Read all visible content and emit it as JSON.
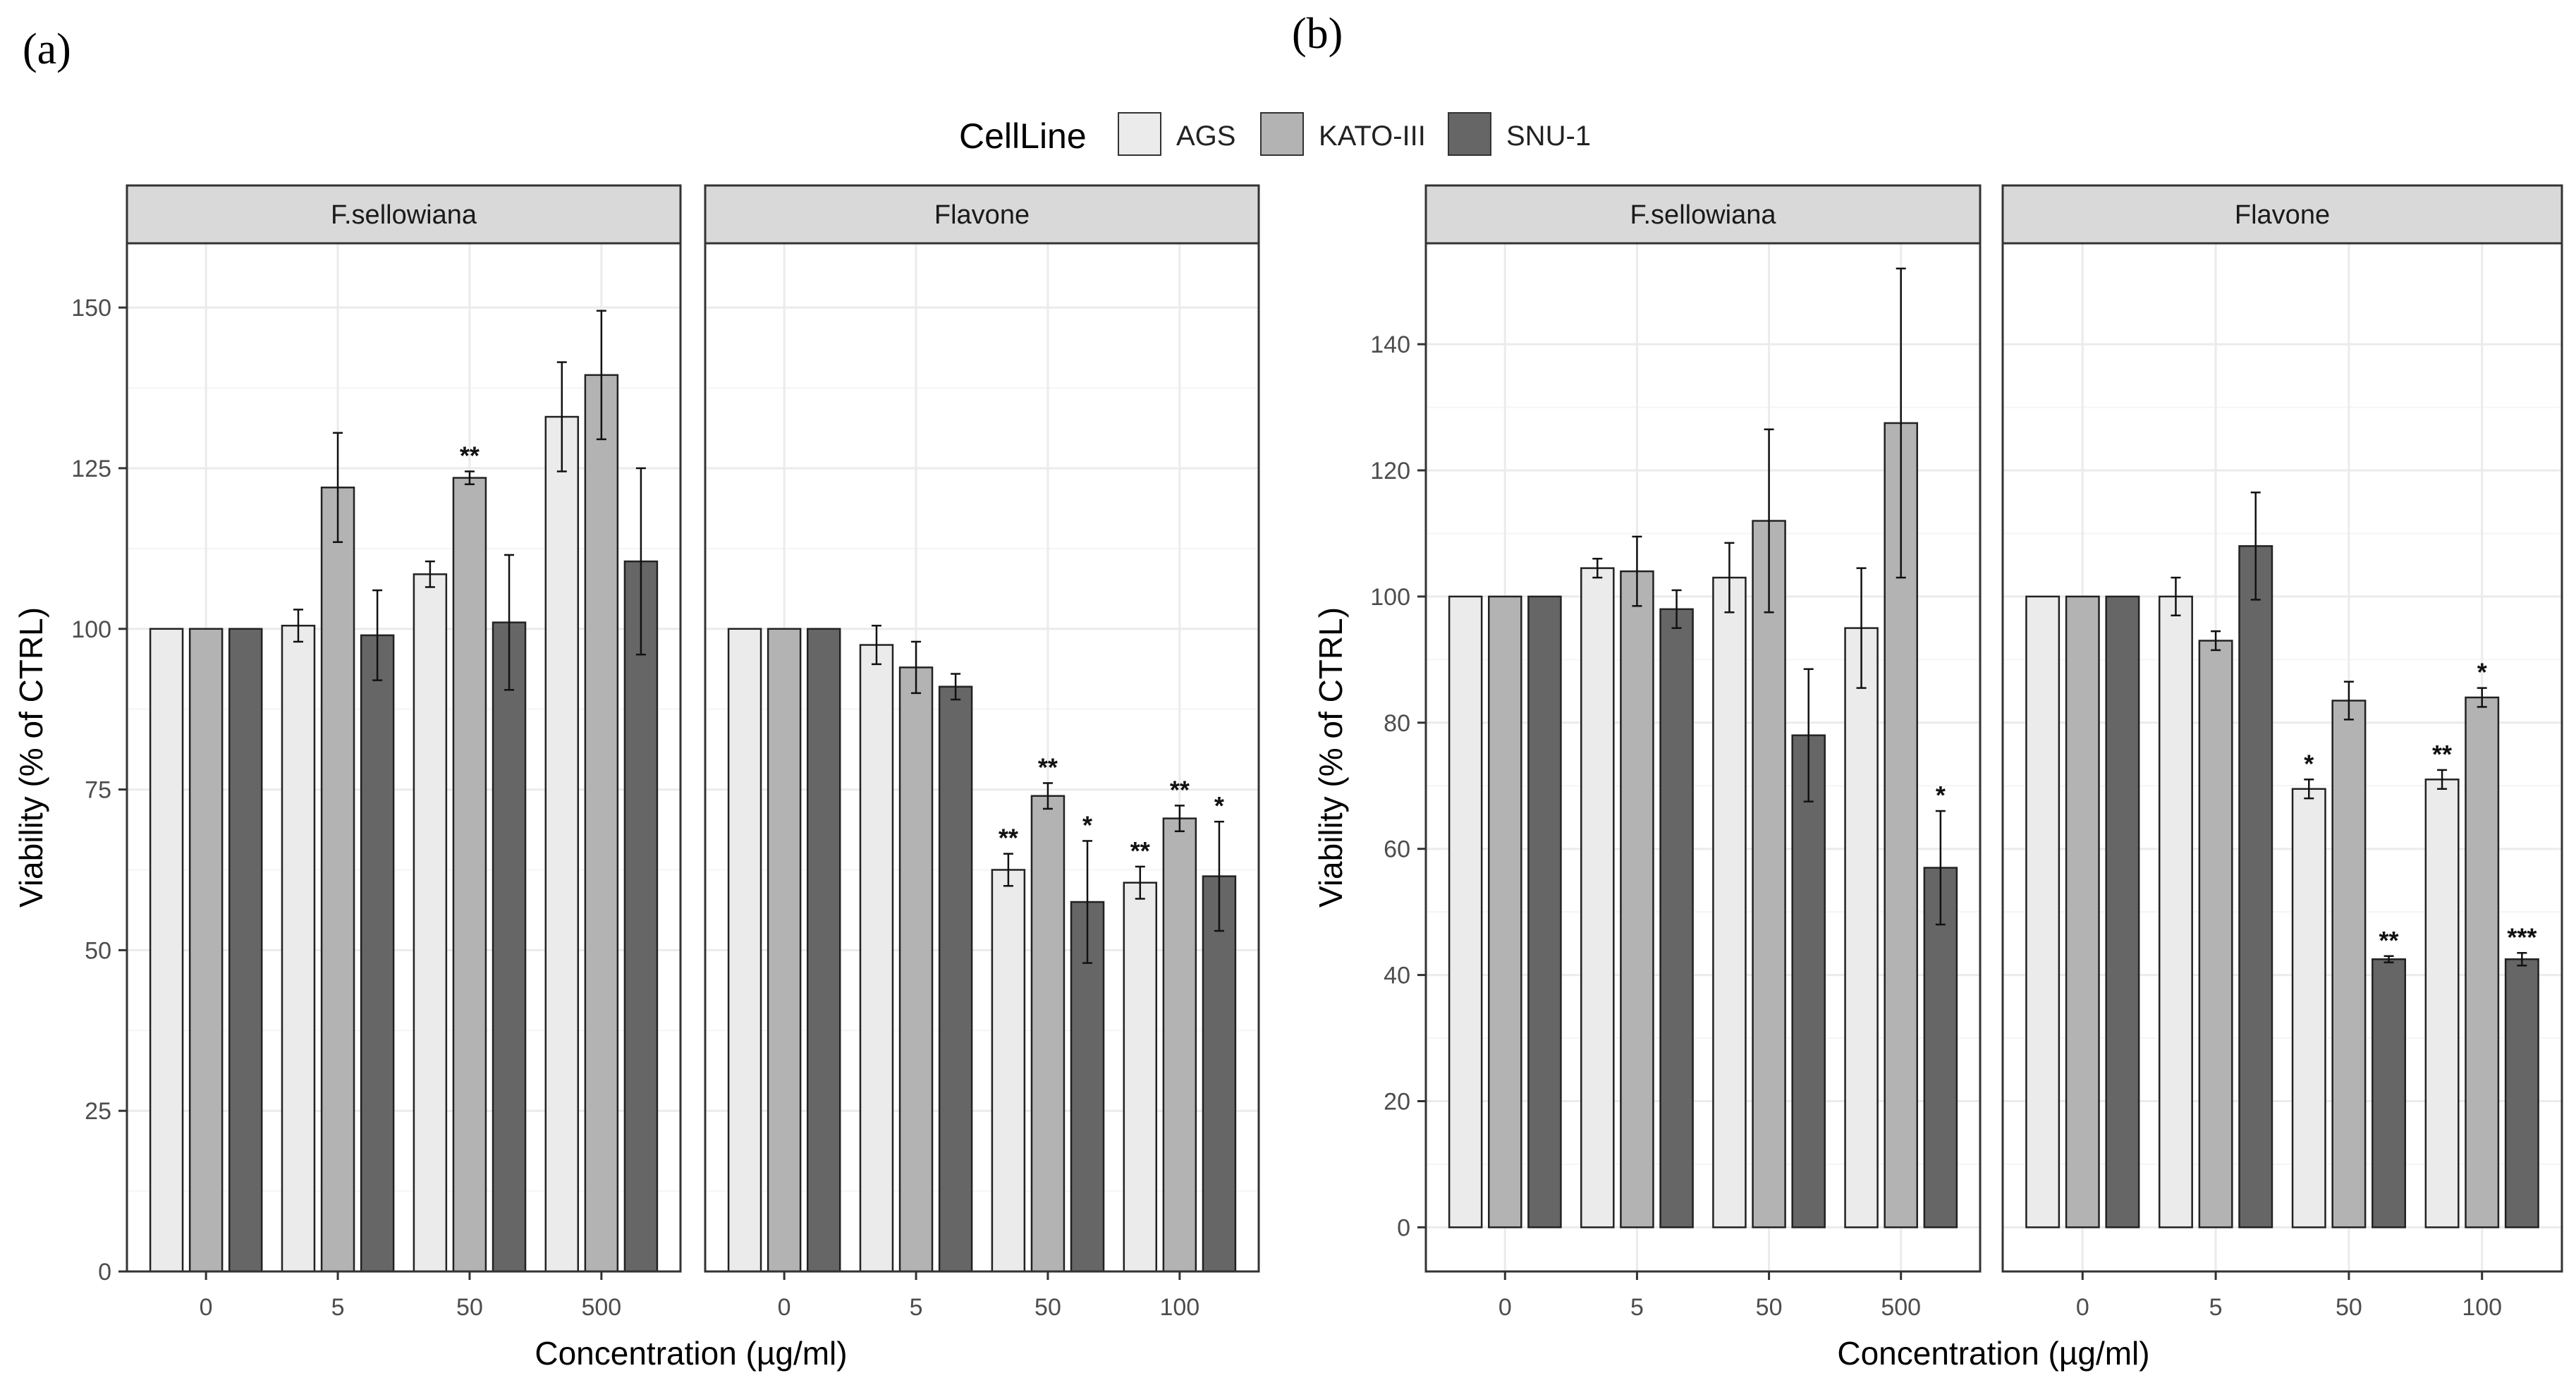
{
  "figure": {
    "panel_labels": [
      "(a)",
      "(b)"
    ],
    "legend": {
      "title": "CellLine",
      "entries": [
        {
          "name": "AGS",
          "color": "#ebebeb"
        },
        {
          "name": "KATO-III",
          "color": "#b3b3b3"
        },
        {
          "name": "SNU-1",
          "color": "#666666"
        }
      ]
    }
  },
  "chart_data": [
    {
      "type": "bar",
      "panel": "(a)",
      "xlabel": "Concentration (µg/ml)",
      "ylabel": "Viability (% of CTRL)",
      "ylim": [
        0,
        160
      ],
      "yticks": [
        0,
        25,
        50,
        75,
        100,
        125,
        150
      ],
      "series_names": [
        "AGS",
        "KATO-III",
        "SNU-1"
      ],
      "facets": [
        {
          "title": "F.sellowiana",
          "categories": [
            "0",
            "5",
            "50",
            "500"
          ],
          "series": [
            {
              "name": "AGS",
              "values": [
                100,
                100.5,
                108.5,
                133
              ],
              "errors": [
                0,
                2.5,
                2,
                8.5
              ],
              "sig": [
                "",
                "",
                "",
                ""
              ]
            },
            {
              "name": "KATO-III",
              "values": [
                100,
                122,
                123.5,
                139.5
              ],
              "errors": [
                0,
                8.5,
                1,
                10
              ],
              "sig": [
                "",
                "",
                "**",
                ""
              ]
            },
            {
              "name": "SNU-1",
              "values": [
                100,
                99,
                101,
                110.5
              ],
              "errors": [
                0,
                7,
                10.5,
                14.5
              ],
              "sig": [
                "",
                "",
                "",
                ""
              ]
            }
          ]
        },
        {
          "title": "Flavone",
          "categories": [
            "0",
            "5",
            "50",
            "100"
          ],
          "series": [
            {
              "name": "AGS",
              "values": [
                100,
                97.5,
                62.5,
                60.5
              ],
              "errors": [
                0,
                3,
                2.5,
                2.5
              ],
              "sig": [
                "",
                "",
                "**",
                "**"
              ]
            },
            {
              "name": "KATO-III",
              "values": [
                100,
                94,
                74,
                70.5
              ],
              "errors": [
                0,
                4,
                2,
                2
              ],
              "sig": [
                "",
                "",
                "**",
                "**"
              ]
            },
            {
              "name": "SNU-1",
              "values": [
                100,
                91,
                57.5,
                61.5
              ],
              "errors": [
                0,
                2,
                9.5,
                8.5
              ],
              "sig": [
                "",
                "",
                "*",
                "*"
              ]
            }
          ]
        }
      ]
    },
    {
      "type": "bar",
      "panel": "(b)",
      "xlabel": "Concentration (µg/ml)",
      "ylabel": "Viability (% of CTRL)",
      "ylim": [
        -7,
        156
      ],
      "yticks": [
        0,
        20,
        40,
        60,
        80,
        100,
        120,
        140
      ],
      "series_names": [
        "AGS",
        "KATO-III",
        "SNU-1"
      ],
      "facets": [
        {
          "title": "F.sellowiana",
          "categories": [
            "0",
            "5",
            "50",
            "500"
          ],
          "series": [
            {
              "name": "AGS",
              "values": [
                100,
                104.5,
                103,
                95
              ],
              "errors": [
                0,
                1.5,
                5.5,
                9.5
              ],
              "sig": [
                "",
                "",
                "",
                ""
              ]
            },
            {
              "name": "KATO-III",
              "values": [
                100,
                104,
                112,
                127.5
              ],
              "errors": [
                0,
                5.5,
                14.5,
                24.5
              ],
              "sig": [
                "",
                "",
                "",
                ""
              ]
            },
            {
              "name": "SNU-1",
              "values": [
                100,
                98,
                78,
                57
              ],
              "errors": [
                0,
                3,
                10.5,
                9
              ],
              "sig": [
                "",
                "",
                "",
                "*"
              ]
            }
          ]
        },
        {
          "title": "Flavone",
          "categories": [
            "0",
            "5",
            "50",
            "100"
          ],
          "series": [
            {
              "name": "AGS",
              "values": [
                100,
                100,
                69.5,
                71
              ],
              "errors": [
                0,
                3,
                1.5,
                1.5
              ],
              "sig": [
                "",
                "",
                "*",
                "**"
              ]
            },
            {
              "name": "KATO-III",
              "values": [
                100,
                93,
                83.5,
                84
              ],
              "errors": [
                0,
                1.5,
                3,
                1.5
              ],
              "sig": [
                "",
                "",
                "",
                "*"
              ]
            },
            {
              "name": "SNU-1",
              "values": [
                100,
                108,
                42.5,
                42.5
              ],
              "errors": [
                0,
                8.5,
                0.5,
                1
              ],
              "sig": [
                "",
                "",
                "**",
                "***"
              ]
            }
          ]
        }
      ]
    }
  ]
}
